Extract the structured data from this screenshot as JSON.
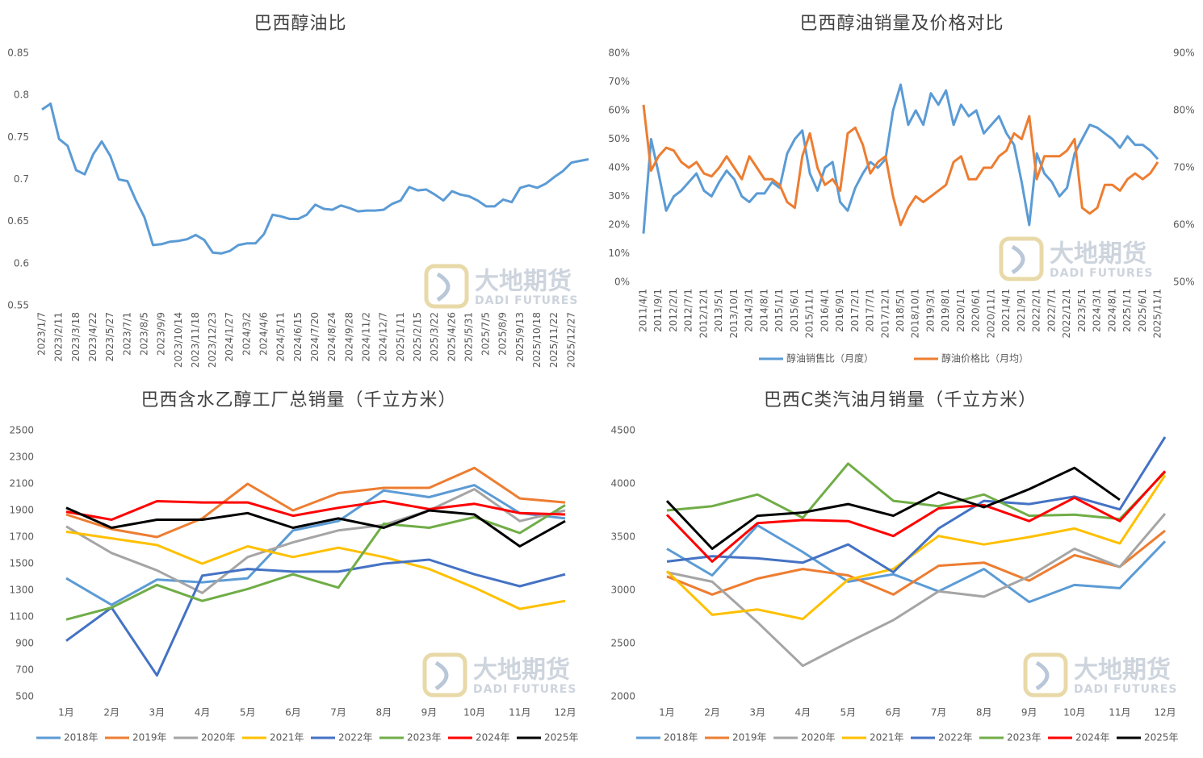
{
  "watermark": {
    "name": "大地期货",
    "sub": "DADI FUTURES"
  },
  "chart_data": [
    {
      "type": "line",
      "title": "巴西醇油比",
      "categories": [
        "2023/1/7",
        null,
        "2023/2/11",
        null,
        "2023/3/18",
        null,
        "2023/4/22",
        null,
        "2023/5/27",
        null,
        "2023/7/1",
        null,
        "2023/8/5",
        null,
        "2023/9/9",
        null,
        "2023/10/14",
        null,
        "2023/11/18",
        null,
        "2023/12/23",
        null,
        "2024/1/27",
        null,
        "2024/3/2",
        null,
        "2024/4/6",
        null,
        "2024/5/11",
        null,
        "2024/6/15",
        null,
        "2024/7/20",
        null,
        "2024/8/24",
        null,
        "2024/9/28",
        null,
        "2024/11/2",
        null,
        "2024/12/7",
        null,
        "2025/1/11",
        null,
        "2025/2/15",
        null,
        "2025/3/22",
        null,
        "2025/4/26",
        null,
        "2025/5/31",
        null,
        "2025/7/5",
        null,
        "2025/8/9",
        null,
        "2025/9/13",
        null,
        "2025/10/18",
        null,
        "2025/11/22",
        null,
        "2025/12/27",
        null,
        null
      ],
      "series": [
        {
          "color": "#5b9bd5",
          "values": [
            0.783,
            0.79,
            0.748,
            0.74,
            0.711,
            0.706,
            0.73,
            0.745,
            0.728,
            0.7,
            0.698,
            0.675,
            0.655,
            0.622,
            0.623,
            0.626,
            0.627,
            0.629,
            0.634,
            0.628,
            0.613,
            0.612,
            0.615,
            0.622,
            0.624,
            0.624,
            0.635,
            0.658,
            0.656,
            0.653,
            0.653,
            0.658,
            0.67,
            0.665,
            0.664,
            0.669,
            0.666,
            0.662,
            0.663,
            0.663,
            0.664,
            0.671,
            0.675,
            0.691,
            0.687,
            0.688,
            0.682,
            0.675,
            0.686,
            0.682,
            0.68,
            0.675,
            0.668,
            0.668,
            0.676,
            0.673,
            0.69,
            0.693,
            0.69,
            0.695,
            0.703,
            0.71,
            0.72,
            0.722,
            0.724
          ]
        }
      ],
      "ylim": [
        0.55,
        0.85
      ],
      "yticks": [
        0.55,
        0.6,
        0.65,
        0.7,
        0.75,
        0.8,
        0.85
      ],
      "grid": false
    },
    {
      "type": "line",
      "title": "巴西醇油销量及价格对比",
      "categories": [
        "2011/4/1",
        null,
        "2011/9/1",
        null,
        "2012/2/1",
        null,
        "2012/7/1",
        null,
        "2012/12/1",
        null,
        "2013/5/1",
        null,
        "2013/10/1",
        null,
        "2014/3/1",
        null,
        "2014/8/1",
        null,
        "2015/1/1",
        null,
        "2015/6/1",
        null,
        "2015/11/1",
        null,
        "2016/4/1",
        null,
        "2016/9/1",
        null,
        "2017/2/1",
        null,
        "2017/7/1",
        null,
        "2017/12/1",
        null,
        "2018/5/1",
        null,
        "2018/10/1",
        null,
        "2019/3/1",
        null,
        "2019/8/1",
        null,
        "2020/1/1",
        null,
        "2020/6/1",
        null,
        "2020/11/1",
        null,
        "2021/4/1",
        null,
        "2021/9/1",
        null,
        "2022/2/1",
        null,
        "2022/7/1",
        null,
        "2022/12/1",
        null,
        "2023/5/1",
        null,
        "2024/3/1",
        null,
        "2024/8/1",
        null,
        "2025/1/1",
        null,
        "2025/6/1",
        null,
        "2025/11/1"
      ],
      "series": [
        {
          "name": "醇油销售比（月度）",
          "color": "#5b9bd5",
          "values": [
            17,
            50,
            38,
            25,
            30,
            32,
            35,
            38,
            32,
            30,
            35,
            39,
            36,
            30,
            28,
            31,
            31,
            35,
            33,
            45,
            50,
            53,
            38,
            32,
            40,
            42,
            28,
            25,
            33,
            38,
            42,
            40,
            43,
            60,
            69,
            55,
            60,
            55,
            66,
            62,
            67,
            55,
            62,
            58,
            60,
            52,
            55,
            58,
            52,
            48,
            35,
            20,
            45,
            38,
            35,
            30,
            33,
            45,
            50,
            55,
            54,
            52,
            50,
            47,
            51,
            48,
            48,
            46,
            43
          ]
        },
        {
          "name": "醇油价格比（月均）",
          "color": "#ed7d31",
          "axis": "y2",
          "values": [
            81,
            69.5,
            72,
            73.5,
            73,
            71,
            70,
            71,
            69,
            68.5,
            70,
            72,
            70,
            68,
            72,
            70,
            68,
            68,
            67,
            64,
            63,
            72,
            76,
            70,
            67,
            68,
            66,
            76,
            77,
            74,
            69,
            71,
            72,
            65,
            60,
            63,
            65,
            64,
            65,
            66,
            67,
            71,
            72,
            68,
            68,
            70,
            70,
            72,
            73,
            76,
            75,
            79,
            68,
            72,
            72,
            72,
            73,
            75,
            63,
            62,
            63,
            67,
            67,
            66,
            68,
            69,
            68,
            69,
            71
          ]
        }
      ],
      "ylim": [
        0,
        80
      ],
      "yticks": [
        {
          "value": 0,
          "label": "0%"
        },
        {
          "value": 10,
          "label": "10%"
        },
        {
          "value": 20,
          "label": "20%"
        },
        {
          "value": 30,
          "label": "30%"
        },
        {
          "value": 40,
          "label": "40%"
        },
        {
          "value": 50,
          "label": "50%"
        },
        {
          "value": 60,
          "label": "60%"
        },
        {
          "value": 70,
          "label": "70%"
        },
        {
          "value": 80,
          "label": "80%"
        }
      ],
      "y2lim": [
        50,
        90
      ],
      "y2ticks": [
        {
          "value": 50,
          "label": "50%"
        },
        {
          "value": 60,
          "label": "60%"
        },
        {
          "value": 70,
          "label": "70%"
        },
        {
          "value": 80,
          "label": "80%"
        },
        {
          "value": 90,
          "label": "90%"
        }
      ],
      "grid": false,
      "legend": "bottom"
    },
    {
      "type": "line",
      "title": "巴西含水乙醇工厂总销量（千立方米）",
      "categories": [
        "1月",
        "2月",
        "3月",
        "4月",
        "5月",
        "6月",
        "7月",
        "8月",
        "9月",
        "10月",
        "11月",
        "12月"
      ],
      "series": [
        {
          "name": "2018年",
          "color": "#5b9bd5",
          "values": [
            1390,
            1190,
            1380,
            1360,
            1390,
            1750,
            1820,
            2050,
            2000,
            2090,
            1880,
            1840
          ]
        },
        {
          "name": "2019年",
          "color": "#ed7d31",
          "values": [
            1870,
            1760,
            1700,
            1840,
            2100,
            1900,
            2030,
            2070,
            2070,
            2220,
            1990,
            1960
          ]
        },
        {
          "name": "2020年",
          "color": "#a5a5a5",
          "values": [
            1780,
            1580,
            1450,
            1280,
            1550,
            1660,
            1750,
            1790,
            1900,
            2060,
            1820,
            1900
          ]
        },
        {
          "name": "2021年",
          "color": "#ffc000",
          "values": [
            1740,
            1690,
            1640,
            1500,
            1630,
            1550,
            1620,
            1550,
            1460,
            1320,
            1160,
            1220
          ]
        },
        {
          "name": "2022年",
          "color": "#4472c4",
          "values": [
            920,
            1170,
            660,
            1410,
            1460,
            1440,
            1440,
            1500,
            1530,
            1420,
            1330,
            1420
          ]
        },
        {
          "name": "2023年",
          "color": "#70ad47",
          "values": [
            1080,
            1170,
            1340,
            1220,
            1310,
            1420,
            1320,
            1800,
            1770,
            1850,
            1730,
            1940
          ]
        },
        {
          "name": "2024年",
          "color": "#ff0000",
          "values": [
            1890,
            1830,
            1970,
            1960,
            1960,
            1860,
            1920,
            1970,
            1910,
            1950,
            1880,
            1870
          ]
        },
        {
          "name": "2025年",
          "color": "#000000",
          "values": [
            1920,
            1770,
            1830,
            1830,
            1880,
            1770,
            1840,
            1770,
            1900,
            1870,
            1630,
            1820
          ]
        }
      ],
      "ylim": [
        500,
        2500
      ],
      "yticks": [
        500,
        700,
        900,
        1100,
        1300,
        1500,
        1700,
        1900,
        2100,
        2300,
        2500
      ],
      "grid": false,
      "legend": "bottom"
    },
    {
      "type": "line",
      "title": "巴西C类汽油月销量（千立方米）",
      "categories": [
        "1月",
        "2月",
        "3月",
        "4月",
        "5月",
        "6月",
        "7月",
        "8月",
        "9月",
        "10月",
        "11月",
        "12月"
      ],
      "series": [
        {
          "name": "2018年",
          "color": "#5b9bd5",
          "values": [
            3390,
            3140,
            3610,
            3360,
            3080,
            3150,
            2990,
            3200,
            2890,
            3050,
            3020,
            3460
          ]
        },
        {
          "name": "2019年",
          "color": "#ed7d31",
          "values": [
            3130,
            2960,
            3110,
            3200,
            3140,
            2960,
            3230,
            3260,
            3090,
            3330,
            3220,
            3560
          ]
        },
        {
          "name": "2020年",
          "color": "#a5a5a5",
          "values": [
            3170,
            3080,
            2700,
            2290,
            2510,
            2720,
            2990,
            2940,
            3130,
            3390,
            3220,
            3720
          ]
        },
        {
          "name": "2021年",
          "color": "#ffc000",
          "values": [
            3180,
            2770,
            2820,
            2730,
            3100,
            3200,
            3510,
            3430,
            3500,
            3580,
            3440,
            4080
          ]
        },
        {
          "name": "2022年",
          "color": "#4472c4",
          "values": [
            3270,
            3320,
            3300,
            3260,
            3430,
            3170,
            3580,
            3840,
            3810,
            3880,
            3760,
            4440
          ]
        },
        {
          "name": "2023年",
          "color": "#70ad47",
          "values": [
            3750,
            3790,
            3900,
            3680,
            4190,
            3840,
            3790,
            3900,
            3700,
            3710,
            3670,
            4110
          ]
        },
        {
          "name": "2024年",
          "color": "#ff0000",
          "values": [
            3710,
            3270,
            3630,
            3660,
            3650,
            3510,
            3770,
            3800,
            3650,
            3870,
            3650,
            4120
          ]
        },
        {
          "name": "2025年",
          "color": "#000000",
          "values": [
            3840,
            3390,
            3700,
            3730,
            3810,
            3700,
            3920,
            3780,
            3950,
            4150,
            3850,
            null
          ]
        }
      ],
      "ylim": [
        2000,
        4500
      ],
      "yticks": [
        2000,
        2500,
        3000,
        3500,
        4000,
        4500
      ],
      "grid": false,
      "legend": "bottom"
    }
  ]
}
